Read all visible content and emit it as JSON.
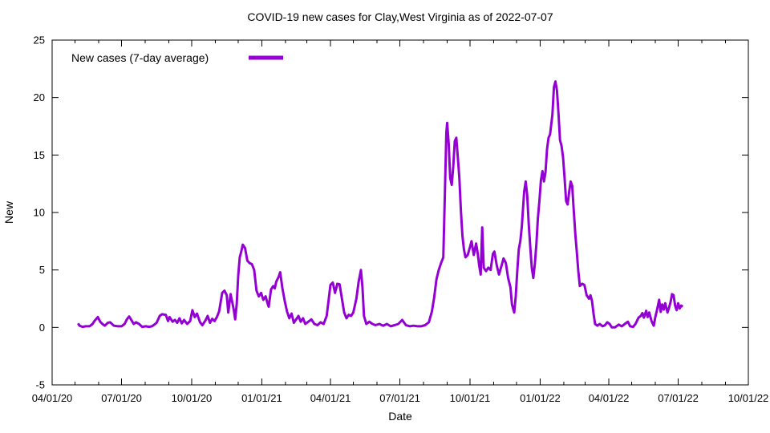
{
  "chart_data": {
    "type": "line",
    "title": "COVID-19 new cases for Clay,West Virginia as of 2022-07-07",
    "xlabel": "Date",
    "ylabel": "New",
    "ylim": [
      -5,
      25
    ],
    "xlim": [
      "2020-04-01",
      "2022-10-01"
    ],
    "y_ticks": [
      -5,
      0,
      5,
      10,
      15,
      20,
      25
    ],
    "x_ticks": [
      {
        "date": "2020-04-01",
        "label": "04/01/20"
      },
      {
        "date": "2020-07-01",
        "label": "07/01/20"
      },
      {
        "date": "2020-10-01",
        "label": "10/01/20"
      },
      {
        "date": "2021-01-01",
        "label": "01/01/21"
      },
      {
        "date": "2021-04-01",
        "label": "04/01/21"
      },
      {
        "date": "2021-07-01",
        "label": "07/01/21"
      },
      {
        "date": "2021-10-01",
        "label": "10/01/21"
      },
      {
        "date": "2022-01-01",
        "label": "01/01/22"
      },
      {
        "date": "2022-04-01",
        "label": "04/01/22"
      },
      {
        "date": "2022-07-01",
        "label": "07/01/22"
      },
      {
        "date": "2022-10-01",
        "label": "10/01/22"
      }
    ],
    "x_minor_ticks": "monthly",
    "grid": false,
    "legend_position": "top-left-inside",
    "line_color": "#9400d3",
    "axis_color": "#000000",
    "background_color": "#ffffff",
    "series": [
      {
        "name": "New cases (7-day average)",
        "points": [
          [
            "2020-05-05",
            0.35
          ],
          [
            "2020-05-07",
            0.15
          ],
          [
            "2020-05-11",
            0.05
          ],
          [
            "2020-05-15",
            0.1
          ],
          [
            "2020-05-20",
            0.1
          ],
          [
            "2020-05-24",
            0.3
          ],
          [
            "2020-05-27",
            0.6
          ],
          [
            "2020-05-31",
            0.9
          ],
          [
            "2020-06-03",
            0.5
          ],
          [
            "2020-06-06",
            0.3
          ],
          [
            "2020-06-09",
            0.15
          ],
          [
            "2020-06-13",
            0.4
          ],
          [
            "2020-06-16",
            0.45
          ],
          [
            "2020-06-21",
            0.15
          ],
          [
            "2020-06-26",
            0.1
          ],
          [
            "2020-07-01",
            0.1
          ],
          [
            "2020-07-05",
            0.3
          ],
          [
            "2020-07-08",
            0.7
          ],
          [
            "2020-07-11",
            0.95
          ],
          [
            "2020-07-13",
            0.75
          ],
          [
            "2020-07-17",
            0.3
          ],
          [
            "2020-07-20",
            0.45
          ],
          [
            "2020-07-24",
            0.3
          ],
          [
            "2020-07-28",
            0.05
          ],
          [
            "2020-08-02",
            0.1
          ],
          [
            "2020-08-06",
            0.05
          ],
          [
            "2020-08-10",
            0.1
          ],
          [
            "2020-08-13",
            0.25
          ],
          [
            "2020-08-16",
            0.4
          ],
          [
            "2020-08-20",
            1.0
          ],
          [
            "2020-08-23",
            1.15
          ],
          [
            "2020-08-28",
            1.1
          ],
          [
            "2020-08-31",
            0.55
          ],
          [
            "2020-09-02",
            0.9
          ],
          [
            "2020-09-06",
            0.5
          ],
          [
            "2020-09-09",
            0.65
          ],
          [
            "2020-09-12",
            0.4
          ],
          [
            "2020-09-15",
            0.8
          ],
          [
            "2020-09-18",
            0.35
          ],
          [
            "2020-09-21",
            0.65
          ],
          [
            "2020-09-25",
            0.3
          ],
          [
            "2020-09-29",
            0.55
          ],
          [
            "2020-10-02",
            1.5
          ],
          [
            "2020-10-05",
            0.9
          ],
          [
            "2020-10-08",
            1.2
          ],
          [
            "2020-10-12",
            0.45
          ],
          [
            "2020-10-15",
            0.2
          ],
          [
            "2020-10-19",
            0.6
          ],
          [
            "2020-10-22",
            1.0
          ],
          [
            "2020-10-25",
            0.4
          ],
          [
            "2020-10-28",
            0.75
          ],
          [
            "2020-10-31",
            0.55
          ],
          [
            "2020-11-03",
            0.9
          ],
          [
            "2020-11-06",
            1.4
          ],
          [
            "2020-11-10",
            3.0
          ],
          [
            "2020-11-13",
            3.2
          ],
          [
            "2020-11-16",
            2.8
          ],
          [
            "2020-11-18",
            1.3
          ],
          [
            "2020-11-21",
            2.9
          ],
          [
            "2020-11-25",
            1.6
          ],
          [
            "2020-11-27",
            0.7
          ],
          [
            "2020-11-29",
            2.0
          ],
          [
            "2020-12-01",
            4.5
          ],
          [
            "2020-12-03",
            6.1
          ],
          [
            "2020-12-05",
            6.6
          ],
          [
            "2020-12-07",
            7.2
          ],
          [
            "2020-12-10",
            6.9
          ],
          [
            "2020-12-13",
            5.8
          ],
          [
            "2020-12-16",
            5.6
          ],
          [
            "2020-12-19",
            5.5
          ],
          [
            "2020-12-22",
            5.0
          ],
          [
            "2020-12-25",
            3.2
          ],
          [
            "2020-12-28",
            2.7
          ],
          [
            "2020-12-31",
            3.0
          ],
          [
            "2021-01-03",
            2.4
          ],
          [
            "2021-01-06",
            2.7
          ],
          [
            "2021-01-08",
            2.2
          ],
          [
            "2021-01-10",
            1.8
          ],
          [
            "2021-01-13",
            3.3
          ],
          [
            "2021-01-16",
            3.6
          ],
          [
            "2021-01-18",
            3.4
          ],
          [
            "2021-01-20",
            4.0
          ],
          [
            "2021-01-23",
            4.4
          ],
          [
            "2021-01-25",
            4.8
          ],
          [
            "2021-01-28",
            3.4
          ],
          [
            "2021-01-31",
            2.3
          ],
          [
            "2021-02-03",
            1.4
          ],
          [
            "2021-02-06",
            0.8
          ],
          [
            "2021-02-09",
            1.2
          ],
          [
            "2021-02-12",
            0.4
          ],
          [
            "2021-02-15",
            0.7
          ],
          [
            "2021-02-18",
            1.0
          ],
          [
            "2021-02-21",
            0.5
          ],
          [
            "2021-02-24",
            0.8
          ],
          [
            "2021-02-27",
            0.3
          ],
          [
            "2021-03-03",
            0.5
          ],
          [
            "2021-03-07",
            0.7
          ],
          [
            "2021-03-11",
            0.3
          ],
          [
            "2021-03-15",
            0.2
          ],
          [
            "2021-03-19",
            0.45
          ],
          [
            "2021-03-23",
            0.3
          ],
          [
            "2021-03-27",
            1.0
          ],
          [
            "2021-03-30",
            2.6
          ],
          [
            "2021-04-01",
            3.7
          ],
          [
            "2021-04-04",
            3.9
          ],
          [
            "2021-04-07",
            3.0
          ],
          [
            "2021-04-10",
            3.8
          ],
          [
            "2021-04-13",
            3.75
          ],
          [
            "2021-04-16",
            2.5
          ],
          [
            "2021-04-19",
            1.3
          ],
          [
            "2021-04-22",
            0.8
          ],
          [
            "2021-04-25",
            1.1
          ],
          [
            "2021-04-28",
            1.0
          ],
          [
            "2021-05-01",
            1.3
          ],
          [
            "2021-05-05",
            2.5
          ],
          [
            "2021-05-08",
            4.0
          ],
          [
            "2021-05-11",
            5.0
          ],
          [
            "2021-05-13",
            3.5
          ],
          [
            "2021-05-15",
            1.0
          ],
          [
            "2021-05-18",
            0.3
          ],
          [
            "2021-05-22",
            0.5
          ],
          [
            "2021-05-26",
            0.3
          ],
          [
            "2021-05-30",
            0.2
          ],
          [
            "2021-06-04",
            0.3
          ],
          [
            "2021-06-09",
            0.15
          ],
          [
            "2021-06-14",
            0.3
          ],
          [
            "2021-06-19",
            0.1
          ],
          [
            "2021-06-24",
            0.2
          ],
          [
            "2021-06-29",
            0.3
          ],
          [
            "2021-07-04",
            0.65
          ],
          [
            "2021-07-09",
            0.2
          ],
          [
            "2021-07-14",
            0.1
          ],
          [
            "2021-07-19",
            0.15
          ],
          [
            "2021-07-24",
            0.1
          ],
          [
            "2021-07-29",
            0.1
          ],
          [
            "2021-08-03",
            0.2
          ],
          [
            "2021-08-08",
            0.45
          ],
          [
            "2021-08-12",
            1.4
          ],
          [
            "2021-08-15",
            2.6
          ],
          [
            "2021-08-18",
            4.2
          ],
          [
            "2021-08-21",
            5.0
          ],
          [
            "2021-08-24",
            5.6
          ],
          [
            "2021-08-27",
            6.1
          ],
          [
            "2021-08-29",
            11.5
          ],
          [
            "2021-08-31",
            17.0
          ],
          [
            "2021-09-01",
            17.8
          ],
          [
            "2021-09-03",
            16.0
          ],
          [
            "2021-09-05",
            13.0
          ],
          [
            "2021-09-07",
            12.4
          ],
          [
            "2021-09-09",
            14.0
          ],
          [
            "2021-09-11",
            16.2
          ],
          [
            "2021-09-13",
            16.5
          ],
          [
            "2021-09-15",
            14.8
          ],
          [
            "2021-09-17",
            13.0
          ],
          [
            "2021-09-19",
            10.2
          ],
          [
            "2021-09-21",
            8.0
          ],
          [
            "2021-09-23",
            6.8
          ],
          [
            "2021-09-25",
            6.1
          ],
          [
            "2021-09-28",
            6.3
          ],
          [
            "2021-10-01",
            7.0
          ],
          [
            "2021-10-03",
            7.5
          ],
          [
            "2021-10-06",
            6.3
          ],
          [
            "2021-10-09",
            7.3
          ],
          [
            "2021-10-11",
            6.5
          ],
          [
            "2021-10-13",
            5.4
          ],
          [
            "2021-10-15",
            4.6
          ],
          [
            "2021-10-17",
            8.7
          ],
          [
            "2021-10-19",
            5.2
          ],
          [
            "2021-10-22",
            4.9
          ],
          [
            "2021-10-25",
            5.2
          ],
          [
            "2021-10-28",
            5.0
          ],
          [
            "2021-10-31",
            6.4
          ],
          [
            "2021-11-02",
            6.6
          ],
          [
            "2021-11-05",
            5.4
          ],
          [
            "2021-11-08",
            4.6
          ],
          [
            "2021-11-11",
            5.3
          ],
          [
            "2021-11-14",
            6.0
          ],
          [
            "2021-11-17",
            5.6
          ],
          [
            "2021-11-20",
            4.3
          ],
          [
            "2021-11-23",
            3.5
          ],
          [
            "2021-11-25",
            2.0
          ],
          [
            "2021-11-28",
            1.3
          ],
          [
            "2021-11-30",
            2.7
          ],
          [
            "2021-12-02",
            4.9
          ],
          [
            "2021-12-04",
            6.8
          ],
          [
            "2021-12-06",
            7.5
          ],
          [
            "2021-12-08",
            8.8
          ],
          [
            "2021-12-11",
            11.8
          ],
          [
            "2021-12-13",
            12.7
          ],
          [
            "2021-12-15",
            11.5
          ],
          [
            "2021-12-17",
            9.0
          ],
          [
            "2021-12-19",
            7.0
          ],
          [
            "2021-12-21",
            5.2
          ],
          [
            "2021-12-23",
            4.3
          ],
          [
            "2021-12-25",
            5.5
          ],
          [
            "2021-12-27",
            7.2
          ],
          [
            "2021-12-29",
            9.5
          ],
          [
            "2021-12-31",
            11.0
          ],
          [
            "2022-01-02",
            12.8
          ],
          [
            "2022-01-04",
            13.6
          ],
          [
            "2022-01-06",
            12.7
          ],
          [
            "2022-01-08",
            13.5
          ],
          [
            "2022-01-10",
            15.5
          ],
          [
            "2022-01-12",
            16.5
          ],
          [
            "2022-01-14",
            16.8
          ],
          [
            "2022-01-17",
            18.5
          ],
          [
            "2022-01-19",
            20.9
          ],
          [
            "2022-01-21",
            21.4
          ],
          [
            "2022-01-23",
            20.6
          ],
          [
            "2022-01-25",
            18.6
          ],
          [
            "2022-01-27",
            16.3
          ],
          [
            "2022-01-29",
            15.8
          ],
          [
            "2022-01-31",
            14.8
          ],
          [
            "2022-02-02",
            13.0
          ],
          [
            "2022-02-04",
            11.0
          ],
          [
            "2022-02-06",
            10.7
          ],
          [
            "2022-02-08",
            11.8
          ],
          [
            "2022-02-10",
            12.7
          ],
          [
            "2022-02-12",
            12.3
          ],
          [
            "2022-02-14",
            10.2
          ],
          [
            "2022-02-16",
            8.2
          ],
          [
            "2022-02-18",
            6.6
          ],
          [
            "2022-02-20",
            4.9
          ],
          [
            "2022-02-22",
            3.6
          ],
          [
            "2022-02-25",
            3.8
          ],
          [
            "2022-02-28",
            3.7
          ],
          [
            "2022-03-03",
            2.8
          ],
          [
            "2022-03-06",
            2.5
          ],
          [
            "2022-03-08",
            2.8
          ],
          [
            "2022-03-10",
            2.3
          ],
          [
            "2022-03-12",
            1.2
          ],
          [
            "2022-03-14",
            0.3
          ],
          [
            "2022-03-17",
            0.15
          ],
          [
            "2022-03-20",
            0.3
          ],
          [
            "2022-03-24",
            0.1
          ],
          [
            "2022-03-27",
            0.2
          ],
          [
            "2022-03-30",
            0.45
          ],
          [
            "2022-04-02",
            0.3
          ],
          [
            "2022-04-05",
            0.0
          ],
          [
            "2022-04-09",
            0.0
          ],
          [
            "2022-04-14",
            0.25
          ],
          [
            "2022-04-18",
            0.1
          ],
          [
            "2022-04-22",
            0.3
          ],
          [
            "2022-04-26",
            0.5
          ],
          [
            "2022-04-29",
            0.1
          ],
          [
            "2022-05-03",
            0.05
          ],
          [
            "2022-05-06",
            0.3
          ],
          [
            "2022-05-10",
            0.85
          ],
          [
            "2022-05-13",
            1.0
          ],
          [
            "2022-05-15",
            1.25
          ],
          [
            "2022-05-17",
            0.85
          ],
          [
            "2022-05-20",
            1.45
          ],
          [
            "2022-05-22",
            0.9
          ],
          [
            "2022-05-24",
            1.3
          ],
          [
            "2022-05-27",
            0.55
          ],
          [
            "2022-05-30",
            0.15
          ],
          [
            "2022-06-01",
            0.9
          ],
          [
            "2022-06-03",
            1.45
          ],
          [
            "2022-06-06",
            2.4
          ],
          [
            "2022-06-08",
            1.35
          ],
          [
            "2022-06-10",
            2.0
          ],
          [
            "2022-06-12",
            1.55
          ],
          [
            "2022-06-14",
            2.1
          ],
          [
            "2022-06-17",
            1.3
          ],
          [
            "2022-06-19",
            1.7
          ],
          [
            "2022-06-21",
            2.2
          ],
          [
            "2022-06-23",
            2.9
          ],
          [
            "2022-06-25",
            2.8
          ],
          [
            "2022-06-27",
            1.9
          ],
          [
            "2022-06-29",
            1.5
          ],
          [
            "2022-07-01",
            2.1
          ],
          [
            "2022-07-03",
            1.65
          ],
          [
            "2022-07-05",
            1.9
          ],
          [
            "2022-07-07",
            1.8
          ]
        ]
      }
    ]
  }
}
